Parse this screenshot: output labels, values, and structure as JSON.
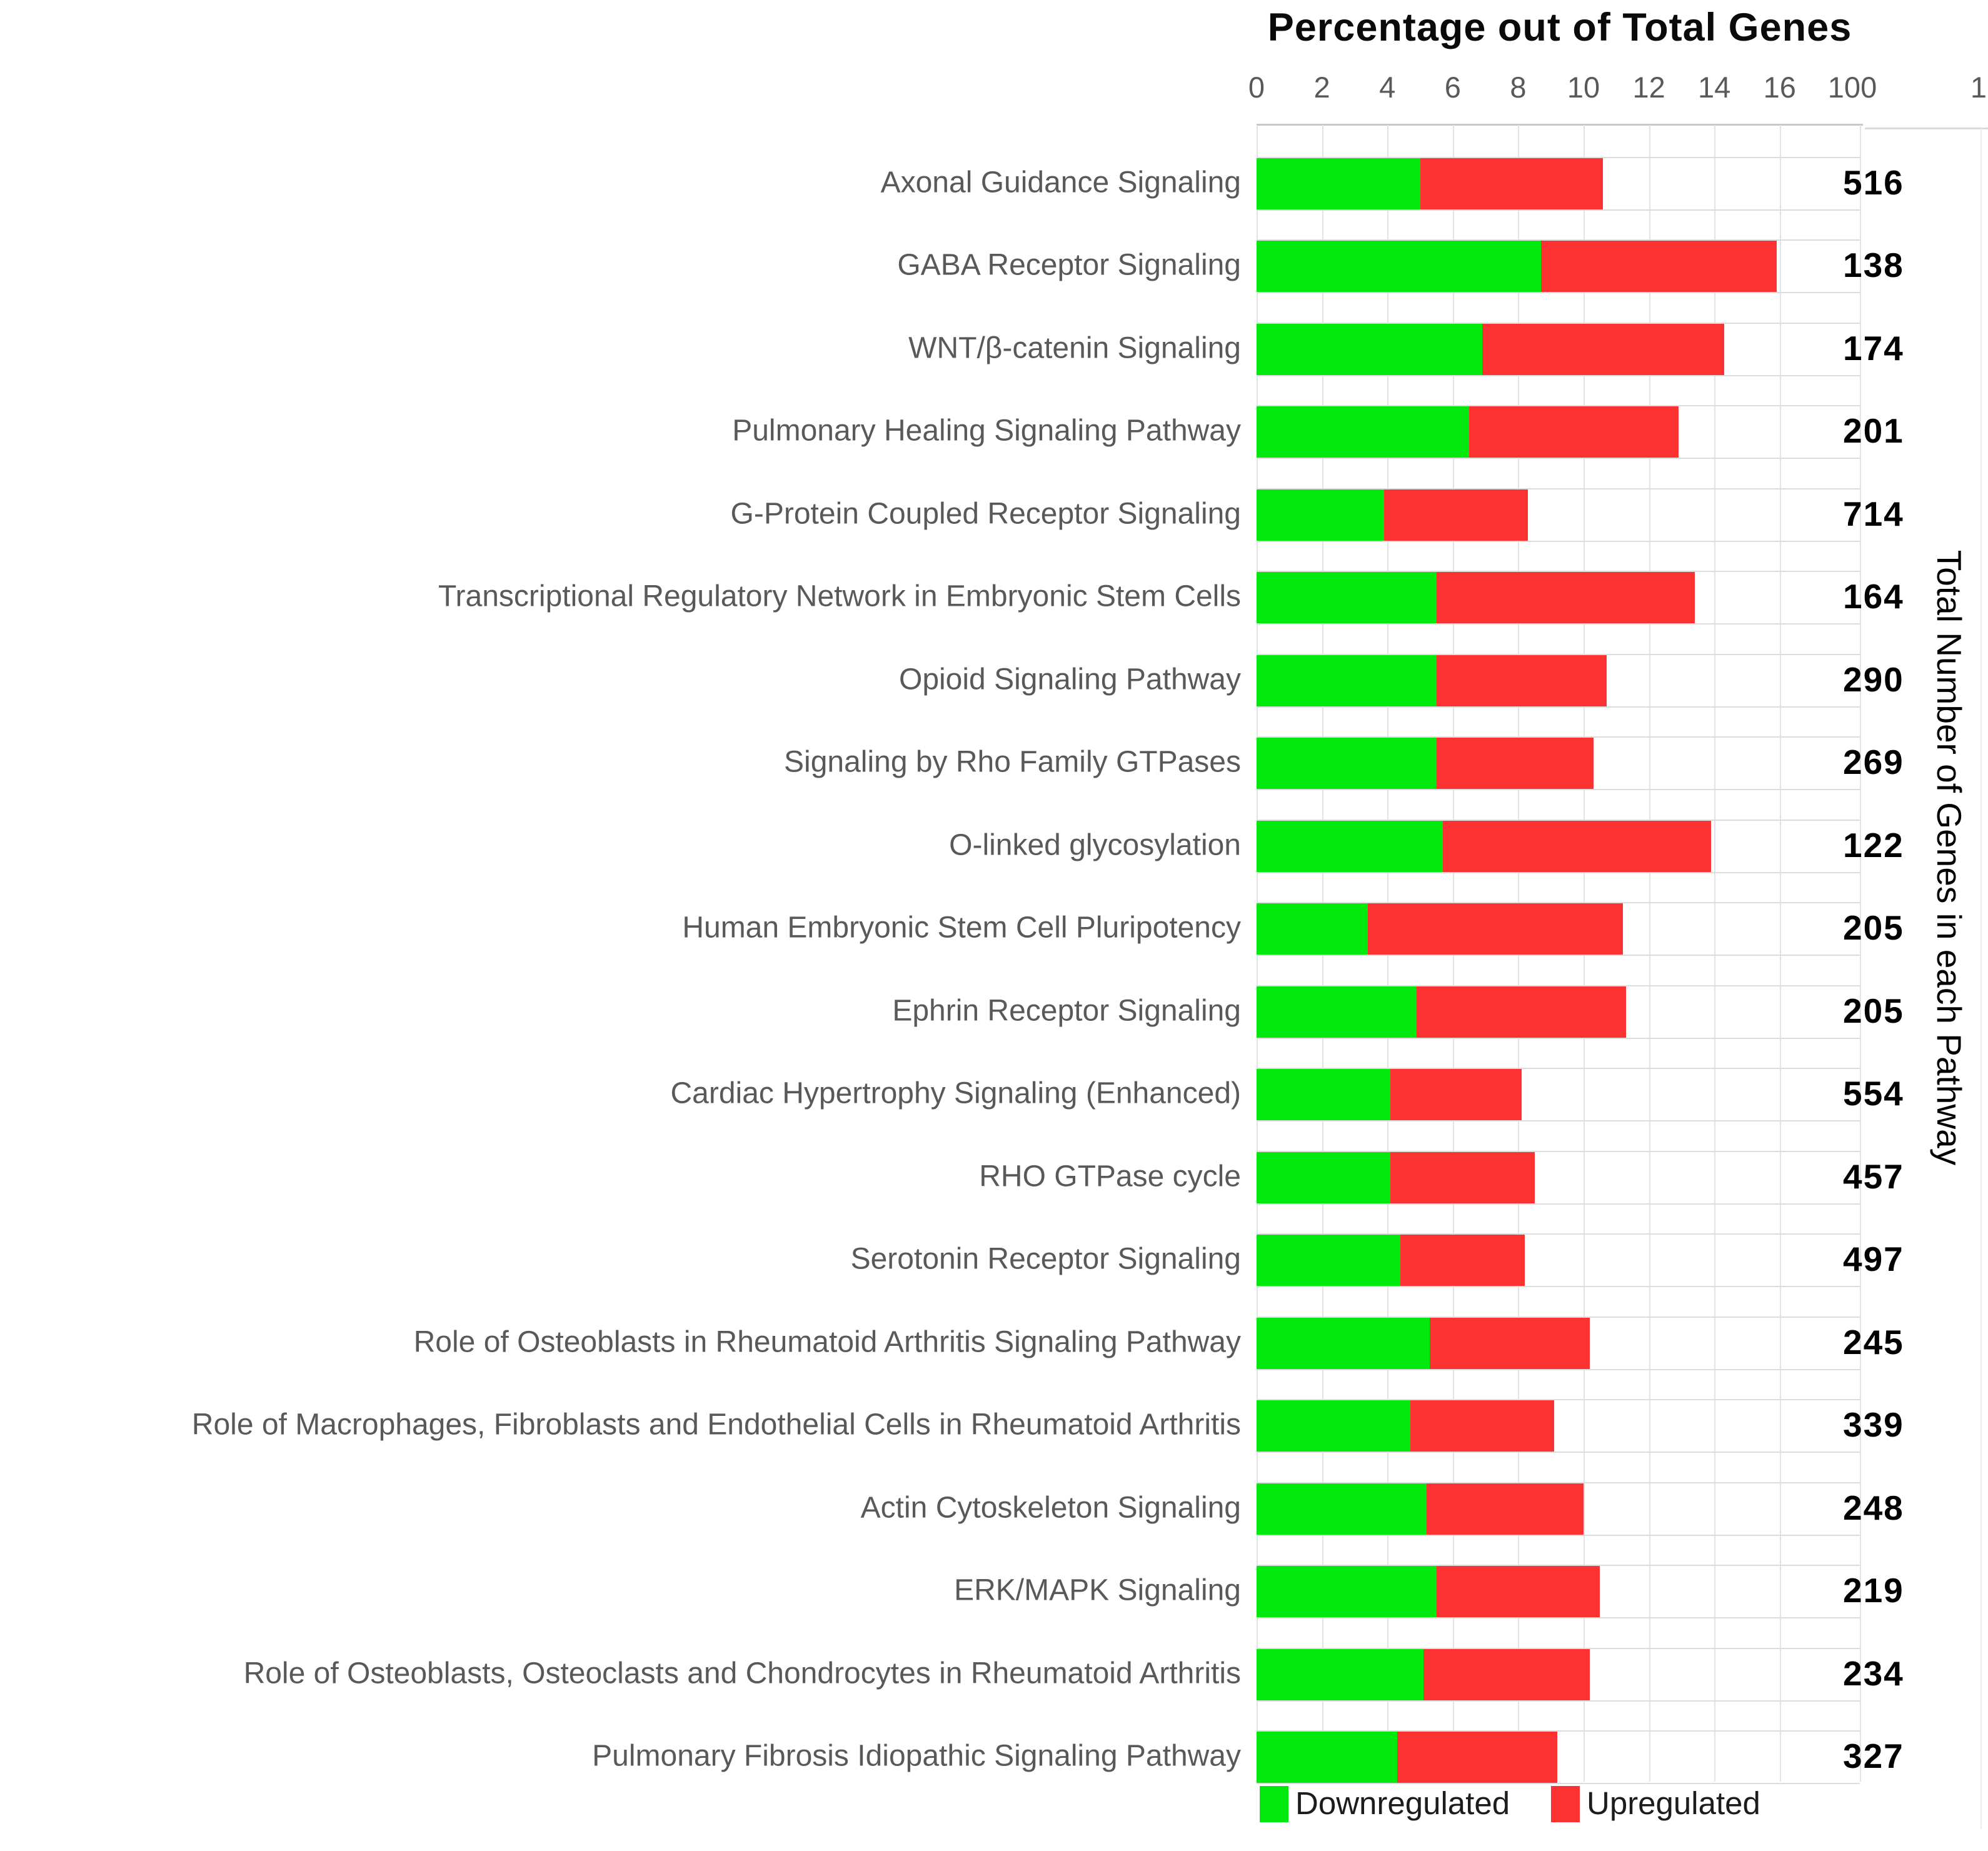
{
  "title": "Percentage out of Total Genes",
  "right_axis_label": "Total Number of Genes in each Pathway",
  "axis": {
    "ticks": [
      "0",
      "2",
      "4",
      "6",
      "8",
      "10",
      "12",
      "14",
      "16"
    ],
    "secondary_tick": "100",
    "partial_tick": "1"
  },
  "legend": {
    "items": [
      {
        "label": "Downregulated",
        "color": "#00e80c"
      },
      {
        "label": "Upregulated",
        "color": "#fc3131"
      }
    ]
  },
  "colors": {
    "downregulated": "#00e80c",
    "upregulated": "#fc3131",
    "gridline": "#e2e2e2",
    "label_gray": "#595959"
  },
  "chart_data": {
    "type": "bar",
    "orientation": "horizontal",
    "stacked": true,
    "title": "Percentage out of Total Genes",
    "xlabel": "Percentage out of Total Genes",
    "ylabel_right": "Total Number of Genes in each Pathway",
    "xlim": [
      0,
      16
    ],
    "grid": true,
    "legend_position": "bottom",
    "categories": [
      "Axonal Guidance Signaling",
      "GABA Receptor Signaling",
      "WNT/β-catenin Signaling",
      "Pulmonary Healing Signaling Pathway",
      "G-Protein Coupled Receptor Signaling",
      "Transcriptional Regulatory Network in Embryonic Stem Cells",
      "Opioid Signaling Pathway",
      "Signaling by Rho Family GTPases",
      "O-linked glycosylation",
      "Human Embryonic Stem Cell Pluripotency",
      "Ephrin Receptor Signaling",
      "Cardiac Hypertrophy Signaling (Enhanced)",
      "RHO GTPase cycle",
      "Serotonin Receptor Signaling",
      "Role of Osteoblasts in Rheumatoid Arthritis Signaling Pathway",
      "Role of Macrophages, Fibroblasts and Endothelial Cells in Rheumatoid Arthritis",
      "Actin Cytoskeleton Signaling",
      "ERK/MAPK Signaling",
      "Role of Osteoblasts, Osteoclasts and Chondrocytes in Rheumatoid Arthritis",
      "Pulmonary Fibrosis Idiopathic Signaling Pathway"
    ],
    "series": [
      {
        "name": "Downregulated",
        "color": "#00e80c",
        "values": [
          5.0,
          8.7,
          6.9,
          6.5,
          3.9,
          5.5,
          5.5,
          5.5,
          5.7,
          3.4,
          4.9,
          4.1,
          4.1,
          4.4,
          5.3,
          4.7,
          5.2,
          5.5,
          5.1,
          4.3
        ]
      },
      {
        "name": "Upregulated",
        "color": "#fc3131",
        "values": [
          5.6,
          7.2,
          7.4,
          6.4,
          4.4,
          7.9,
          5.2,
          4.8,
          8.2,
          7.8,
          6.4,
          4.0,
          4.4,
          3.8,
          4.9,
          4.4,
          4.8,
          5.0,
          5.1,
          4.9
        ]
      }
    ],
    "totals": [
      516,
      138,
      174,
      201,
      714,
      164,
      290,
      269,
      122,
      205,
      205,
      554,
      457,
      497,
      245,
      339,
      248,
      219,
      234,
      327
    ]
  }
}
